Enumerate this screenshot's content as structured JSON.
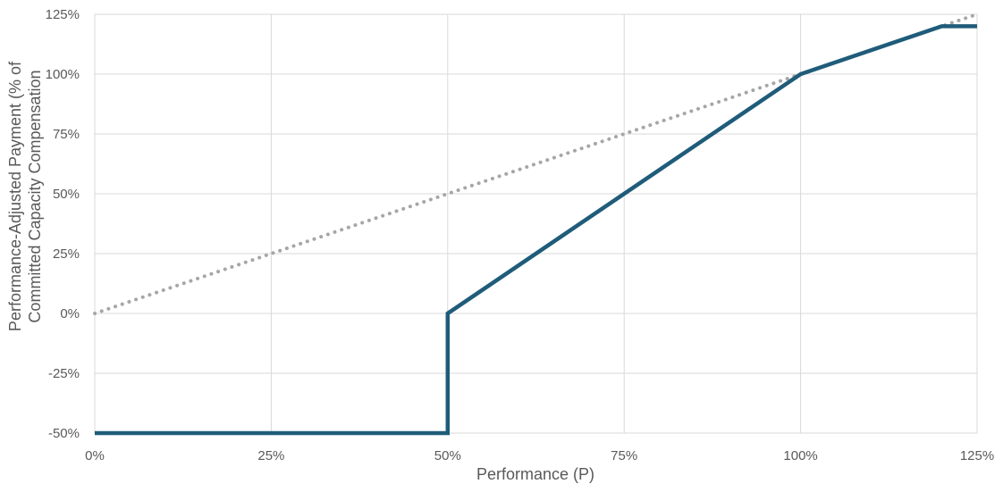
{
  "chart_data": {
    "type": "line",
    "xlabel": "Performance (P)",
    "ylabel_line1": "Performance-Adjusted Payment (% of",
    "ylabel_line2": "Committed Capacity Compensation",
    "xlim": [
      0,
      125
    ],
    "ylim": [
      -50,
      125
    ],
    "x_ticks": [
      "0%",
      "25%",
      "50%",
      "75%",
      "100%",
      "125%"
    ],
    "x_tick_values": [
      0,
      25,
      50,
      75,
      100,
      125
    ],
    "y_ticks": [
      "125%",
      "100%",
      "75%",
      "50%",
      "25%",
      "0%",
      "-25%",
      "-50%"
    ],
    "y_tick_values": [
      125,
      100,
      75,
      50,
      25,
      0,
      -25,
      -50
    ],
    "grid": true,
    "series": [
      {
        "style": "solid",
        "color": "#1f5c7a",
        "points": [
          [
            0,
            -50
          ],
          [
            50,
            -50
          ],
          [
            50,
            0
          ],
          [
            100,
            100
          ],
          [
            120,
            120
          ],
          [
            125,
            120
          ]
        ]
      },
      {
        "style": "dotted",
        "color": "#a6a6a6",
        "points": [
          [
            0,
            0
          ],
          [
            125,
            125
          ]
        ]
      }
    ]
  }
}
